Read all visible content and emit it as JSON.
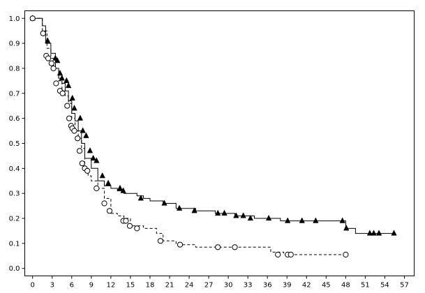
{
  "chart_data": {
    "type": "line",
    "title": "",
    "xlabel": "",
    "ylabel": "",
    "xlim": [
      -1.2,
      58.5
    ],
    "ylim": [
      -0.03,
      1.03
    ],
    "x_ticks": [
      0,
      3,
      6,
      9,
      12,
      15,
      18,
      21,
      24,
      27,
      30,
      33,
      36,
      39,
      42,
      45,
      48,
      51,
      54,
      57
    ],
    "y_ticks": [
      0.0,
      0.1,
      0.2,
      0.3,
      0.4,
      0.5,
      0.6,
      0.7,
      0.8,
      0.9,
      1.0
    ],
    "y_tick_labels": [
      "0.0",
      "0.1",
      "0.2",
      "0.3",
      "0.4",
      "0.5",
      "0.6",
      "0.7",
      "0.8",
      "0.9",
      "1.0"
    ],
    "grid": false,
    "series": [
      {
        "line_style": "solid",
        "marker": "filled-triangle",
        "x": [
          0,
          1.5,
          2,
          2.8,
          3.5,
          4,
          4.5,
          5,
          5.5,
          6,
          6.5,
          7,
          7.5,
          8,
          9,
          10,
          11,
          12,
          13,
          14,
          16,
          17,
          18,
          20,
          22,
          25,
          28,
          30,
          31,
          34,
          38,
          40,
          43,
          47,
          48,
          49.5,
          55.5
        ],
        "y": [
          1.0,
          0.97,
          0.9,
          0.86,
          0.8,
          0.76,
          0.74,
          0.71,
          0.67,
          0.62,
          0.59,
          0.55,
          0.5,
          0.44,
          0.4,
          0.35,
          0.33,
          0.32,
          0.31,
          0.3,
          0.29,
          0.28,
          0.27,
          0.26,
          0.24,
          0.23,
          0.22,
          0.22,
          0.21,
          0.2,
          0.19,
          0.19,
          0.19,
          0.19,
          0.16,
          0.14,
          0.14
        ],
        "censor_x": [
          0,
          2.3,
          3.5,
          3.8,
          4.2,
          4.5,
          5.2,
          5.5,
          6.1,
          6.4,
          7.3,
          7.7,
          8.2,
          8.8,
          9.3,
          9.8,
          10.7,
          11.6,
          13.4,
          13.9,
          16.6,
          20.2,
          22.5,
          24.8,
          28.4,
          29.4,
          31.2,
          32.3,
          33.4,
          36.2,
          39.1,
          41.3,
          43.4,
          47.5,
          48.1,
          51.7,
          52.3,
          53.1,
          55.4
        ],
        "censor_y": [
          1.0,
          0.91,
          0.84,
          0.83,
          0.78,
          0.76,
          0.75,
          0.73,
          0.68,
          0.64,
          0.6,
          0.55,
          0.53,
          0.47,
          0.44,
          0.43,
          0.37,
          0.34,
          0.32,
          0.31,
          0.28,
          0.26,
          0.24,
          0.23,
          0.22,
          0.22,
          0.21,
          0.21,
          0.2,
          0.2,
          0.19,
          0.19,
          0.19,
          0.19,
          0.16,
          0.14,
          0.14,
          0.14,
          0.14
        ]
      },
      {
        "line_style": "dashed",
        "marker": "open-circle",
        "x": [
          0,
          1.5,
          2.2,
          2.8,
          3.5,
          4,
          4.5,
          5,
          5.5,
          6,
          6.5,
          7,
          7.5,
          8,
          8.5,
          9,
          10,
          11,
          12,
          13,
          14,
          15,
          17,
          19,
          20,
          22,
          25,
          30,
          34,
          36.5,
          38.5,
          48
        ],
        "y": [
          1.0,
          0.95,
          0.88,
          0.84,
          0.8,
          0.75,
          0.71,
          0.69,
          0.66,
          0.6,
          0.55,
          0.52,
          0.48,
          0.4,
          0.37,
          0.35,
          0.32,
          0.28,
          0.22,
          0.21,
          0.2,
          0.17,
          0.16,
          0.14,
          0.11,
          0.095,
          0.085,
          0.085,
          0.085,
          0.065,
          0.055,
          0.055
        ],
        "censor_x": [
          0,
          1.6,
          2.1,
          2.4,
          2.9,
          3.2,
          3.6,
          4.2,
          4.6,
          5.3,
          5.6,
          5.9,
          6.1,
          6.4,
          6.9,
          7.2,
          7.6,
          8.0,
          8.4,
          9.8,
          11.0,
          11.8,
          13.9,
          14.3,
          14.9,
          16.0,
          19.6,
          22.6,
          28.4,
          31.0,
          37.6,
          39.1,
          39.6,
          48.0
        ],
        "censor_y": [
          1.0,
          0.94,
          0.85,
          0.84,
          0.82,
          0.8,
          0.74,
          0.71,
          0.7,
          0.65,
          0.6,
          0.57,
          0.56,
          0.55,
          0.52,
          0.47,
          0.42,
          0.4,
          0.39,
          0.32,
          0.26,
          0.23,
          0.19,
          0.19,
          0.17,
          0.16,
          0.11,
          0.095,
          0.085,
          0.085,
          0.055,
          0.055,
          0.055,
          0.055
        ]
      }
    ]
  }
}
